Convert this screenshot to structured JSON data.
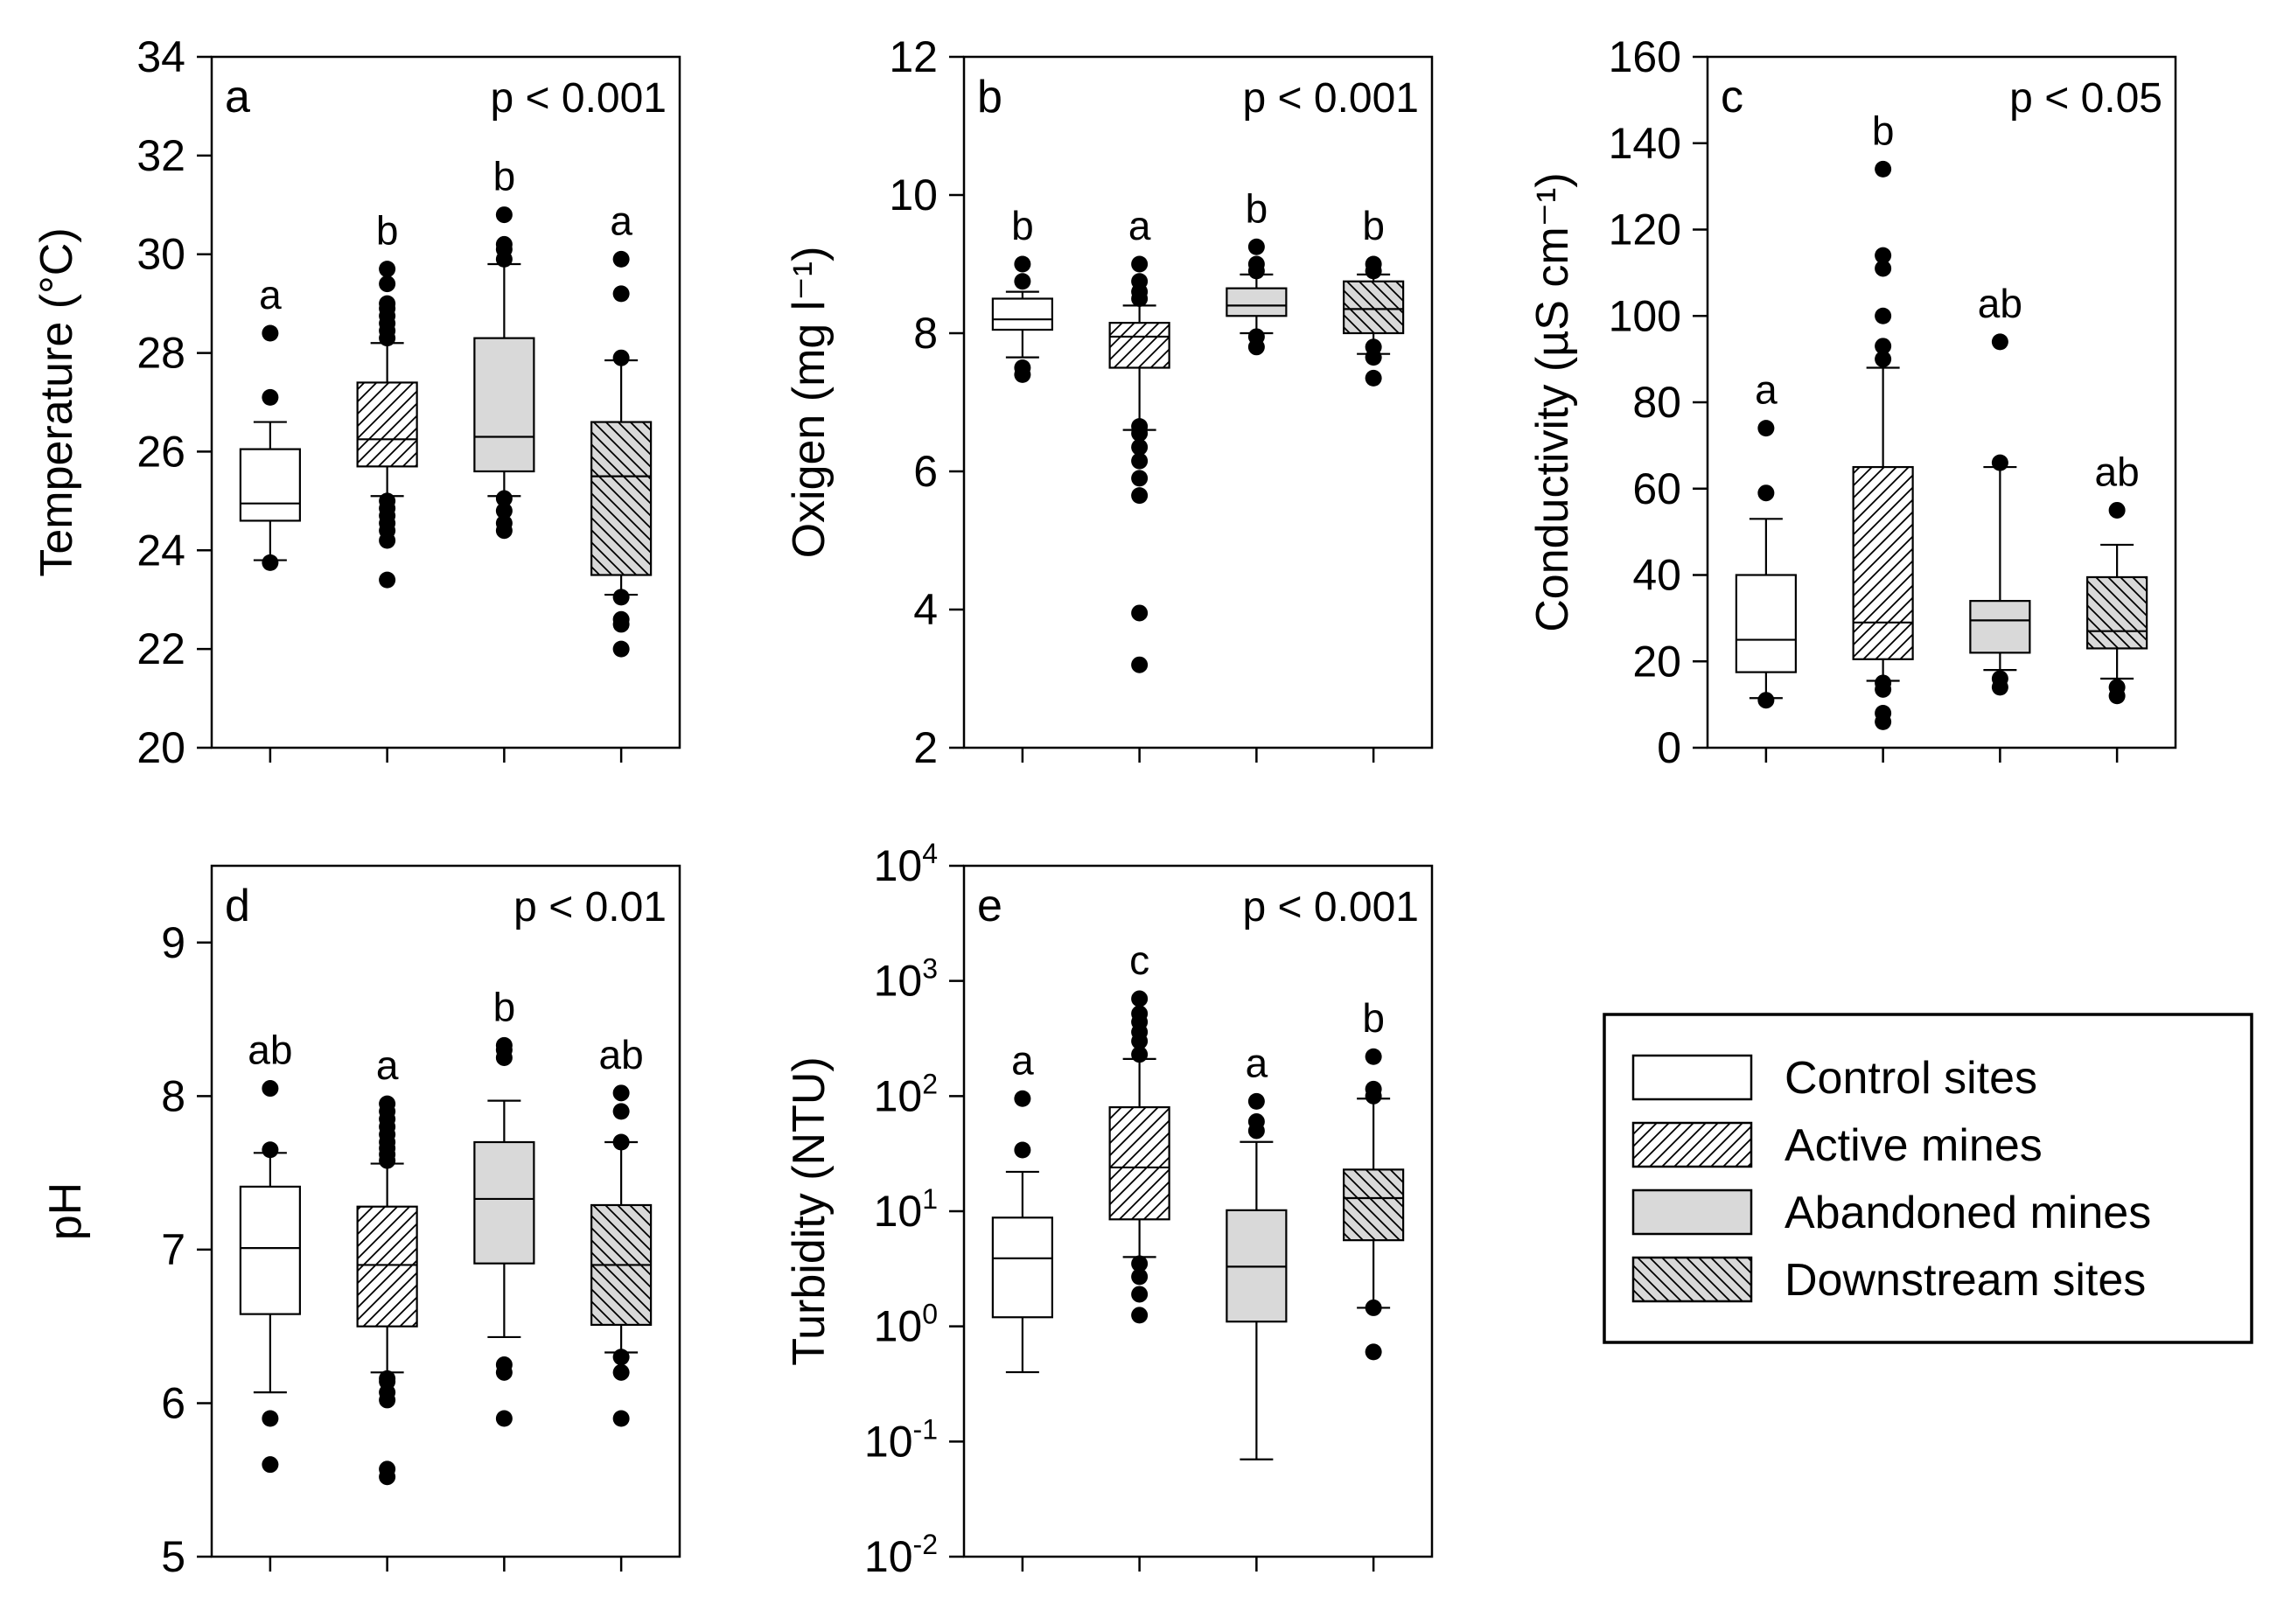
{
  "legend": {
    "items": [
      {
        "label": "Control sites",
        "pattern": "none"
      },
      {
        "label": "Active mines",
        "pattern": "diag"
      },
      {
        "label": "Abandoned mines",
        "pattern": "gray"
      },
      {
        "label": "Downstream sites",
        "pattern": "diag-gray"
      }
    ]
  },
  "colors": {
    "gray_fill": "#d9d9d9",
    "line": "#000000",
    "background": "#ffffff"
  },
  "chart_data": [
    {
      "type": "box",
      "panel": "a",
      "ylabel": "Temperature (°C)",
      "ptext": "p < 0.001",
      "scale": "linear",
      "ylim": [
        20,
        34
      ],
      "ticks": [
        20,
        22,
        24,
        26,
        28,
        30,
        32,
        34
      ],
      "tick_labels": [
        "20",
        "22",
        "24",
        "26",
        "28",
        "30",
        "32",
        "34"
      ],
      "groups": [
        {
          "name": "Control sites",
          "letter": "a",
          "whislo": 23.8,
          "q1": 24.6,
          "med": 24.95,
          "q3": 26.05,
          "whishi": 26.6,
          "fliers": [
            23.75,
            27.1,
            28.4
          ]
        },
        {
          "name": "Active mines",
          "letter": "b",
          "whislo": 25.1,
          "q1": 25.7,
          "med": 26.25,
          "q3": 27.4,
          "whishi": 28.2,
          "fliers": [
            23.4,
            24.2,
            24.4,
            24.55,
            24.7,
            24.85,
            25.0,
            28.3,
            28.45,
            28.6,
            28.75,
            28.9,
            29.0,
            29.4,
            29.7
          ]
        },
        {
          "name": "Abandoned mines",
          "letter": "b",
          "whislo": 25.1,
          "q1": 25.6,
          "med": 26.3,
          "q3": 28.3,
          "whishi": 29.8,
          "fliers": [
            24.4,
            24.55,
            24.8,
            25.05,
            29.9,
            30.1,
            30.2,
            30.8
          ]
        },
        {
          "name": "Downstream sites",
          "letter": "a",
          "whislo": 23.1,
          "q1": 23.5,
          "med": 25.5,
          "q3": 26.6,
          "whishi": 27.85,
          "fliers": [
            22.0,
            22.5,
            22.6,
            23.05,
            27.9,
            29.2,
            29.9
          ]
        }
      ]
    },
    {
      "type": "box",
      "panel": "b",
      "ylabel": "Oxigen (mg l⁻¹)",
      "ptext": "p < 0.001",
      "scale": "linear",
      "ylim": [
        2,
        12
      ],
      "ticks": [
        2,
        4,
        6,
        8,
        10,
        12
      ],
      "tick_labels": [
        "2",
        "4",
        "6",
        "8",
        "10",
        "12"
      ],
      "groups": [
        {
          "name": "Control sites",
          "letter": "b",
          "whislo": 7.65,
          "q1": 8.05,
          "med": 8.2,
          "q3": 8.5,
          "whishi": 8.6,
          "fliers": [
            7.4,
            7.5,
            8.75,
            9.0
          ]
        },
        {
          "name": "Active mines",
          "letter": "a",
          "whislo": 6.6,
          "q1": 7.5,
          "med": 7.95,
          "q3": 8.15,
          "whishi": 8.4,
          "fliers": [
            3.2,
            3.95,
            5.65,
            5.9,
            6.15,
            6.35,
            6.55,
            6.65,
            8.5,
            8.6,
            8.75,
            9.0
          ]
        },
        {
          "name": "Abandoned mines",
          "letter": "b",
          "whislo": 8.0,
          "q1": 8.25,
          "med": 8.4,
          "q3": 8.65,
          "whishi": 8.85,
          "fliers": [
            7.8,
            7.95,
            8.9,
            9.0,
            9.25
          ]
        },
        {
          "name": "Downstream sites",
          "letter": "b",
          "whislo": 7.7,
          "q1": 8.0,
          "med": 8.35,
          "q3": 8.75,
          "whishi": 8.85,
          "fliers": [
            7.35,
            7.65,
            7.8,
            8.9,
            9.0
          ]
        }
      ]
    },
    {
      "type": "box",
      "panel": "c",
      "ylabel": "Conductivity (µS cm⁻¹)",
      "ptext": "p < 0.05",
      "scale": "linear",
      "ylim": [
        0,
        160
      ],
      "ticks": [
        0,
        20,
        40,
        60,
        80,
        100,
        120,
        140,
        160
      ],
      "tick_labels": [
        "0",
        "20",
        "40",
        "60",
        "80",
        "100",
        "120",
        "140",
        "160"
      ],
      "groups": [
        {
          "name": "Control sites",
          "letter": "a",
          "whislo": 11.5,
          "q1": 17.5,
          "med": 25.0,
          "q3": 40.0,
          "whishi": 53.0,
          "fliers": [
            11.0,
            59.0,
            74.0
          ]
        },
        {
          "name": "Active mines",
          "letter": "b",
          "whislo": 15.5,
          "q1": 20.5,
          "med": 29.0,
          "q3": 65.0,
          "whishi": 88.0,
          "fliers": [
            6.0,
            8.0,
            13.5,
            15.0,
            90.0,
            93.0,
            100.0,
            111.0,
            114.0,
            134.0
          ]
        },
        {
          "name": "Abandoned mines",
          "letter": "ab",
          "whislo": 18.0,
          "q1": 22.0,
          "med": 29.5,
          "q3": 34.0,
          "whishi": 65.0,
          "fliers": [
            14.0,
            16.0,
            66.0,
            94.0
          ]
        },
        {
          "name": "Downstream sites",
          "letter": "ab",
          "whislo": 16.0,
          "q1": 23.0,
          "med": 27.0,
          "q3": 39.5,
          "whishi": 47.0,
          "fliers": [
            12.0,
            14.0,
            55.0
          ]
        }
      ]
    },
    {
      "type": "box",
      "panel": "d",
      "ylabel": "pH",
      "ptext": "p < 0.01",
      "scale": "linear",
      "ylim": [
        5,
        9.5
      ],
      "ticks": [
        5,
        6,
        7,
        8,
        9
      ],
      "tick_labels": [
        "5",
        "6",
        "7",
        "8",
        "9"
      ],
      "groups": [
        {
          "name": "Control sites",
          "letter": "ab",
          "whislo": 6.07,
          "q1": 6.58,
          "med": 7.01,
          "q3": 7.41,
          "whishi": 7.63,
          "fliers": [
            5.6,
            5.9,
            7.65,
            8.05
          ]
        },
        {
          "name": "Active mines",
          "letter": "a",
          "whislo": 6.2,
          "q1": 6.5,
          "med": 6.9,
          "q3": 7.28,
          "whishi": 7.56,
          "fliers": [
            5.52,
            5.57,
            6.02,
            6.07,
            6.14,
            6.16,
            7.58,
            7.62,
            7.66,
            7.7,
            7.75,
            7.8,
            7.85,
            7.9,
            7.95
          ]
        },
        {
          "name": "Abandoned mines",
          "letter": "b",
          "whislo": 6.43,
          "q1": 6.91,
          "med": 7.33,
          "q3": 7.7,
          "whishi": 7.97,
          "fliers": [
            5.9,
            6.2,
            6.25,
            8.25,
            8.3,
            8.33
          ]
        },
        {
          "name": "Downstream sites",
          "letter": "ab",
          "whislo": 6.33,
          "q1": 6.51,
          "med": 6.9,
          "q3": 7.29,
          "whishi": 7.7,
          "fliers": [
            5.9,
            6.2,
            6.3,
            7.7,
            7.9,
            8.02
          ]
        }
      ]
    },
    {
      "type": "box",
      "panel": "e",
      "ylabel": "Turbidity (NTU)",
      "ptext": "p < 0.001",
      "scale": "log",
      "ylim": [
        0.01,
        10000
      ],
      "ticks": [
        0.01,
        0.1,
        1,
        10,
        100,
        1000,
        10000
      ],
      "tick_labels": [
        {
          "base": "10",
          "exp": "-2"
        },
        {
          "base": "10",
          "exp": "-1"
        },
        {
          "base": "10",
          "exp": "0"
        },
        {
          "base": "10",
          "exp": "1"
        },
        {
          "base": "10",
          "exp": "2"
        },
        {
          "base": "10",
          "exp": "3"
        },
        {
          "base": "10",
          "exp": "4"
        }
      ],
      "groups": [
        {
          "name": "Control sites",
          "letter": "a",
          "whislo": 0.4,
          "q1": 1.2,
          "med": 3.9,
          "q3": 8.8,
          "whishi": 22,
          "fliers": [
            34,
            95
          ]
        },
        {
          "name": "Active mines",
          "letter": "c",
          "whislo": 4.0,
          "q1": 8.5,
          "med": 24,
          "q3": 80,
          "whishi": 210,
          "fliers": [
            1.25,
            1.9,
            2.7,
            3.5,
            230,
            300,
            360,
            440,
            520,
            700
          ]
        },
        {
          "name": "Abandoned mines",
          "letter": "a",
          "whislo": 0.07,
          "q1": 1.1,
          "med": 3.3,
          "q3": 10.2,
          "whishi": 40,
          "fliers": [
            50,
            60,
            90
          ]
        },
        {
          "name": "Downstream sites",
          "letter": "b",
          "whislo": 1.45,
          "q1": 5.6,
          "med": 13,
          "q3": 23,
          "whishi": 95,
          "fliers": [
            0.6,
            1.45,
            100,
            115,
            220
          ]
        }
      ]
    }
  ]
}
